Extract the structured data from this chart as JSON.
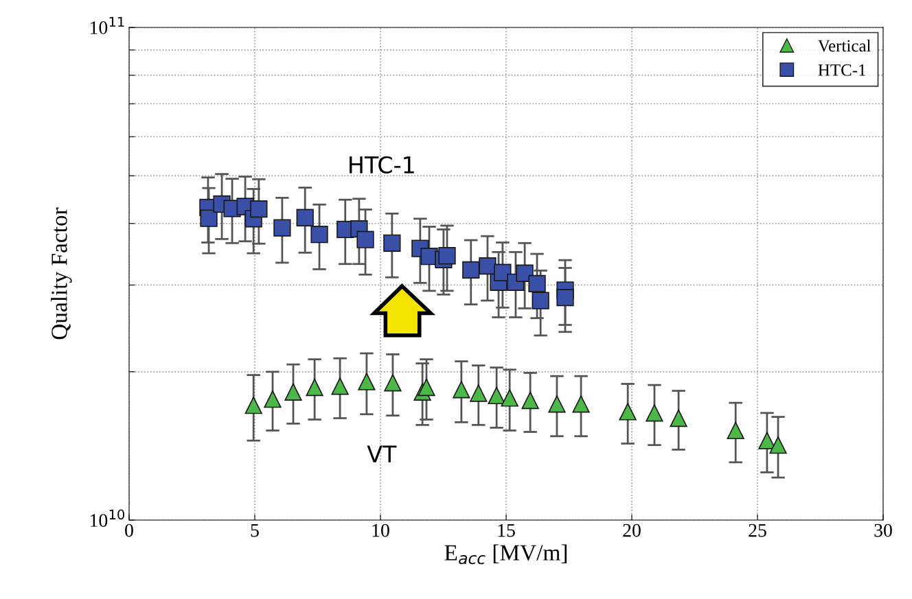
{
  "chart_data": {
    "type": "scatter",
    "xlabel": "E$_{acc}$ [MV/m]",
    "ylabel": "Quality Factor",
    "xlim": [
      0,
      30
    ],
    "xticks": [
      0,
      5,
      10,
      15,
      20,
      25,
      30
    ],
    "log": "y",
    "ylim": [
      10000000000.0,
      100000000000.0
    ],
    "yticks": [
      {
        "value": 10000000000.0,
        "label": "10$^{10}$"
      },
      {
        "value": 20000000000.0,
        "label": null
      },
      {
        "value": 30000000000.0,
        "label": null
      },
      {
        "value": 40000000000.0,
        "label": null
      },
      {
        "value": 50000000000.0,
        "label": null
      },
      {
        "value": 60000000000.0,
        "label": null
      },
      {
        "value": 70000000000.0,
        "label": null
      },
      {
        "value": 80000000000.0,
        "label": null
      },
      {
        "value": 90000000000.0,
        "label": null
      },
      {
        "value": 100000000000.0,
        "label": "10$^{11}$"
      }
    ],
    "grid": true,
    "legend": "top right",
    "series": [
      {
        "name": "Vertical",
        "color": "#4cb848",
        "marker": "triangle",
        "x": [
          4.95,
          5.71,
          6.53,
          7.38,
          8.39,
          9.45,
          10.49,
          11.67,
          11.83,
          13.22,
          13.9,
          14.62,
          15.14,
          15.96,
          17.02,
          17.98,
          19.84,
          20.9,
          21.86,
          24.13,
          25.38,
          25.82
        ],
        "values": [
          17100000000.0,
          17600000000.0,
          18200000000.0,
          18600000000.0,
          18700000000.0,
          19100000000.0,
          19000000000.0,
          18200000000.0,
          18600000000.0,
          18400000000.0,
          18100000000.0,
          17900000000.0,
          17700000000.0,
          17500000000.0,
          17200000000.0,
          17200000000.0,
          16600000000.0,
          16500000000.0,
          16100000000.0,
          15200000000.0,
          14500000000.0,
          14200000000.0
        ],
        "errors": [
          2600000000.0,
          2400000000.0,
          2500000000.0,
          2600000000.0,
          2600000000.0,
          2700000000.0,
          2700000000.0,
          2600000000.0,
          2600000000.0,
          2600000000.0,
          2500000000.0,
          2500000000.0,
          2500000000.0,
          2400000000.0,
          2400000000.0,
          2400000000.0,
          2300000000.0,
          2300000000.0,
          2200000000.0,
          2100000000.0,
          2000000000.0,
          2000000000.0
        ]
      },
      {
        "name": "HTC-1",
        "color": "#3a4fa8",
        "marker": "square",
        "x": [
          3.14,
          3.17,
          3.69,
          4.1,
          4.62,
          4.95,
          5.16,
          6.09,
          7.0,
          7.57,
          8.6,
          9.15,
          9.4,
          10.46,
          11.58,
          11.94,
          12.51,
          12.65,
          13.6,
          14.26,
          14.7,
          14.86,
          15.38,
          15.74,
          16.23,
          16.37,
          17.35,
          17.35
        ],
        "values": [
          43100000000.0,
          41000000000.0,
          43800000000.0,
          42900000000.0,
          43300000000.0,
          40900000000.0,
          42800000000.0,
          39200000000.0,
          41100000000.0,
          38000000000.0,
          38900000000.0,
          39000000000.0,
          37100000000.0,
          36500000000.0,
          35600000000.0,
          34300000000.0,
          33800000000.0,
          34400000000.0,
          32200000000.0,
          32800000000.0,
          30400000000.0,
          31800000000.0,
          30400000000.0,
          31700000000.0,
          30200000000.0,
          27900000000.0,
          29300000000.0,
          28300000000.0
        ],
        "errors": [
          6500000000.0,
          6200000000.0,
          6600000000.0,
          6400000000.0,
          6500000000.0,
          6100000000.0,
          6400000000.0,
          5900000000.0,
          6200000000.0,
          5700000000.0,
          5800000000.0,
          5900000000.0,
          5600000000.0,
          5400000000.0,
          5300000000.0,
          5100000000.0,
          5100000000.0,
          5200000000.0,
          4800000000.0,
          4900000000.0,
          4600000000.0,
          4800000000.0,
          4600000000.0,
          4800000000.0,
          4500000000.0,
          4200000000.0,
          4400000000.0,
          4200000000.0
        ]
      }
    ],
    "annotations": [
      "HTC-1",
      "VT"
    ]
  }
}
